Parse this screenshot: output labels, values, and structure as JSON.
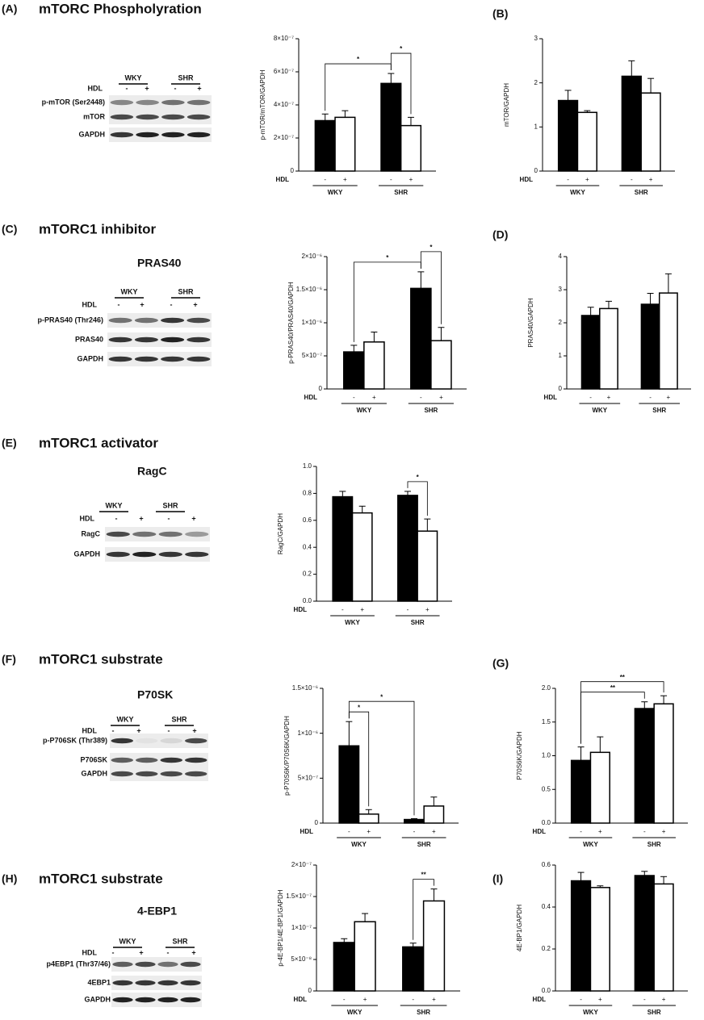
{
  "blots": [
    {
      "panel": "(A)",
      "heading": "mTORC Phospholyration",
      "groups": [
        "WKY",
        "SHR"
      ],
      "hdl": "HDL",
      "signs": [
        "-",
        "+",
        "-",
        "+"
      ],
      "rows": [
        "p-mTOR (Ser2448)",
        "mTOR",
        "GAPDH"
      ]
    },
    {
      "panel": "(C)",
      "heading": "mTORC1 inhibitor",
      "protein": "PRAS40",
      "groups": [
        "WKY",
        "SHR"
      ],
      "hdl": "HDL",
      "signs": [
        "-",
        "+",
        "-",
        "+"
      ],
      "rows": [
        "p-PRAS40 (Thr246)",
        "PRAS40",
        "GAPDH"
      ]
    },
    {
      "panel": "(E)",
      "heading": "mTORC1 activator",
      "protein": "RagC",
      "groups": [
        "WKY",
        "SHR"
      ],
      "hdl": "HDL",
      "signs": [
        "-",
        "+",
        "-",
        "+"
      ],
      "rows": [
        "RagC",
        "GAPDH"
      ]
    },
    {
      "panel": "(F)",
      "heading": "mTORC1 substrate",
      "protein": "P70SK",
      "groups": [
        "WKY",
        "SHR"
      ],
      "hdl": "HDL",
      "signs": [
        "-",
        "+",
        "-",
        "+"
      ],
      "rows": [
        "p-P706SK (Thr389)",
        "P706SK",
        "GAPDH"
      ]
    },
    {
      "panel": "(H)",
      "heading": "mTORC1 substrate",
      "protein": "4-EBP1",
      "groups": [
        "WKY",
        "SHR"
      ],
      "hdl": "HDL",
      "signs": [
        "-",
        "+",
        "-",
        "+"
      ],
      "rows": [
        "p4EBP1 (Thr37/46)",
        "4EBP1",
        "GAPDH"
      ]
    }
  ],
  "chart_data": [
    {
      "type": "bar",
      "ylabel": "p-mTOR/mTOR/GAPDH",
      "xlabel": "HDL",
      "categories": [
        "-",
        "+",
        "-",
        "+"
      ],
      "groups": [
        "WKY",
        "SHR"
      ],
      "colors": [
        "#000000",
        "#ffffff",
        "#000000",
        "#ffffff"
      ],
      "values": [
        3.05e-07,
        3.25e-07,
        5.3e-07,
        2.75e-07
      ],
      "errors": [
        4e-08,
        4e-08,
        6e-08,
        5e-08
      ],
      "ylim": [
        0,
        8e-07
      ],
      "yticks": [
        0,
        {
          "value": 2e-07,
          "label": "2×10⁻⁷"
        },
        {
          "value": 4e-07,
          "label": "4×10⁻⁷"
        },
        {
          "value": 6e-07,
          "label": "6×10⁻⁷"
        },
        {
          "value": 8e-07,
          "label": "8×10⁻⁷"
        }
      ],
      "brackets": [
        {
          "bars": [
            0,
            2
          ],
          "label": "*"
        },
        {
          "bars": [
            2,
            3
          ],
          "label": "*"
        }
      ]
    },
    {
      "type": "bar",
      "panel": "(B)",
      "ylabel": "mTOR/GAPDH",
      "xlabel": "HDL",
      "categories": [
        "-",
        "+",
        "-",
        "+"
      ],
      "groups": [
        "WKY",
        "SHR"
      ],
      "colors": [
        "#000000",
        "#ffffff",
        "#000000",
        "#ffffff"
      ],
      "values": [
        1.6,
        1.33,
        2.15,
        1.77
      ],
      "errors": [
        0.23,
        0.04,
        0.35,
        0.33
      ],
      "ylim": [
        0,
        3
      ],
      "yticks": [
        0,
        1,
        2,
        3
      ],
      "brackets": []
    },
    {
      "type": "bar",
      "ylabel": "p-PRAS40/PRAS40/GAPDH",
      "xlabel": "HDL",
      "categories": [
        "-",
        "+",
        "-",
        "+"
      ],
      "groups": [
        "WKY",
        "SHR"
      ],
      "colors": [
        "#000000",
        "#ffffff",
        "#000000",
        "#ffffff"
      ],
      "values": [
        5.6e-07,
        7.1e-07,
        1.52e-06,
        7.3e-07
      ],
      "errors": [
        1e-07,
        1.5e-07,
        2.5e-07,
        2e-07
      ],
      "ylim": [
        0,
        2e-06
      ],
      "yticks": [
        0,
        {
          "value": 5e-07,
          "label": "5×10⁻⁷"
        },
        {
          "value": 1e-06,
          "label": "1×10⁻⁶"
        },
        {
          "value": 1.5e-06,
          "label": "1.5×10⁻⁶"
        },
        {
          "value": 2e-06,
          "label": "2×10⁻⁶"
        }
      ],
      "brackets": [
        {
          "bars": [
            0,
            2
          ],
          "label": "*"
        },
        {
          "bars": [
            2,
            3
          ],
          "label": "*"
        }
      ]
    },
    {
      "type": "bar",
      "panel": "(D)",
      "ylabel": "PRAS40/GAPDH",
      "xlabel": "HDL",
      "categories": [
        "-",
        "+",
        "-",
        "+"
      ],
      "groups": [
        "WKY",
        "SHR"
      ],
      "colors": [
        "#000000",
        "#ffffff",
        "#000000",
        "#ffffff"
      ],
      "values": [
        2.22,
        2.43,
        2.56,
        2.9
      ],
      "errors": [
        0.25,
        0.22,
        0.33,
        0.58
      ],
      "ylim": [
        0,
        4
      ],
      "yticks": [
        0,
        1,
        2,
        3,
        4
      ],
      "brackets": []
    },
    {
      "type": "bar",
      "ylabel": "RagC/GAPDH",
      "xlabel": "HDL",
      "categories": [
        "-",
        "+",
        "-",
        "+"
      ],
      "groups": [
        "WKY",
        "SHR"
      ],
      "colors": [
        "#000000",
        "#ffffff",
        "#000000",
        "#ffffff"
      ],
      "values": [
        0.775,
        0.655,
        0.785,
        0.52
      ],
      "errors": [
        0.04,
        0.05,
        0.03,
        0.09
      ],
      "ylim": [
        0,
        1
      ],
      "yticks": [
        {
          "value": 0,
          "label": "0.0"
        },
        0.2,
        0.4,
        0.6,
        0.8,
        {
          "value": 1,
          "label": "1.0"
        }
      ],
      "brackets": [
        {
          "bars": [
            2,
            3
          ],
          "label": "*"
        }
      ]
    },
    {
      "type": "bar",
      "ylabel": "p-P70S6K/P70S6K/GAPDH",
      "xlabel": "HDL",
      "categories": [
        "-",
        "+",
        "-",
        "+"
      ],
      "groups": [
        "WKY",
        "SHR"
      ],
      "colors": [
        "#000000",
        "#ffffff",
        "#000000",
        "#ffffff"
      ],
      "values": [
        8.6e-07,
        1e-07,
        4e-08,
        1.9e-07
      ],
      "errors": [
        2.7e-07,
        5e-08,
        1e-08,
        1e-07
      ],
      "ylim": [
        0,
        1.5e-06
      ],
      "yticks": [
        0,
        {
          "value": 5e-07,
          "label": "5×10⁻⁷"
        },
        {
          "value": 1e-06,
          "label": "1×10⁻⁶"
        },
        {
          "value": 1.5e-06,
          "label": "1.5×10⁻⁶"
        }
      ],
      "brackets": [
        {
          "bars": [
            0,
            1
          ],
          "label": "*"
        },
        {
          "bars": [
            0,
            2
          ],
          "label": "*"
        }
      ]
    },
    {
      "type": "bar",
      "panel": "(G)",
      "ylabel": "P70S6K/GAPDH",
      "xlabel": "HDL",
      "categories": [
        "-",
        "+",
        "-",
        "+"
      ],
      "groups": [
        "WKY",
        "SHR"
      ],
      "colors": [
        "#000000",
        "#ffffff",
        "#000000",
        "#ffffff"
      ],
      "values": [
        0.93,
        1.05,
        1.7,
        1.77
      ],
      "errors": [
        0.2,
        0.23,
        0.1,
        0.12
      ],
      "ylim": [
        0,
        2
      ],
      "yticks": [
        {
          "value": 0,
          "label": "0.0"
        },
        0.5,
        {
          "value": 1,
          "label": "1.0"
        },
        1.5,
        {
          "value": 2,
          "label": "2.0"
        }
      ],
      "brackets": [
        {
          "bars": [
            0,
            2
          ],
          "label": "**"
        },
        {
          "bars": [
            0,
            3
          ],
          "label": "**"
        }
      ]
    },
    {
      "type": "bar",
      "ylabel": "p-4E-BP1/4E-BP1/GAPDH",
      "xlabel": "HDL",
      "categories": [
        "-",
        "+",
        "-",
        "+"
      ],
      "groups": [
        "WKY",
        "SHR"
      ],
      "colors": [
        "#000000",
        "#ffffff",
        "#000000",
        "#ffffff"
      ],
      "values": [
        7.7e-08,
        1.1e-07,
        7e-08,
        1.43e-07
      ],
      "errors": [
        6e-09,
        1.3e-08,
        6e-09,
        1.9e-08
      ],
      "ylim": [
        0,
        2e-07
      ],
      "yticks": [
        0,
        {
          "value": 5e-08,
          "label": "5×10⁻⁸"
        },
        {
          "value": 1e-07,
          "label": "1×10⁻⁷"
        },
        {
          "value": 1.5e-07,
          "label": "1.5×10⁻⁷"
        },
        {
          "value": 2e-07,
          "label": "2×10⁻⁷"
        }
      ],
      "brackets": [
        {
          "bars": [
            2,
            3
          ],
          "label": "**"
        }
      ]
    },
    {
      "type": "bar",
      "panel": "(I)",
      "ylabel": "4E-BP1/GAPDH",
      "xlabel": "HDL",
      "categories": [
        "-",
        "+",
        "-",
        "+"
      ],
      "groups": [
        "WKY",
        "SHR"
      ],
      "colors": [
        "#000000",
        "#ffffff",
        "#000000",
        "#ffffff"
      ],
      "values": [
        0.525,
        0.493,
        0.55,
        0.51
      ],
      "errors": [
        0.04,
        0.008,
        0.02,
        0.035
      ],
      "ylim": [
        0,
        0.6
      ],
      "yticks": [
        {
          "value": 0,
          "label": "0.0"
        },
        0.2,
        0.4,
        0.6
      ],
      "brackets": []
    }
  ]
}
